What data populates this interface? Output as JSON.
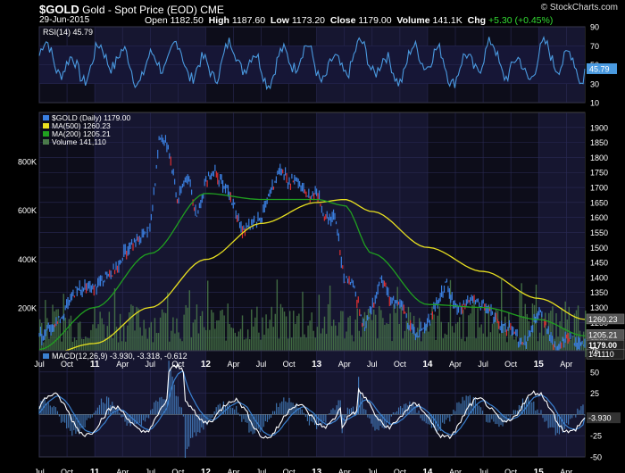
{
  "header": {
    "symbol": "$GOLD",
    "name": "Gold - Spot Price (EOD)",
    "exchange": "CME",
    "date": "29-Jun-2015",
    "open_label": "Open",
    "open": "1182.50",
    "high_label": "High",
    "high": "1187.60",
    "low_label": "Low",
    "low": "1173.20",
    "close_label": "Close",
    "close": "1179.00",
    "volume_label": "Volume",
    "volume": "141.1K",
    "chg_label": "Chg",
    "chg": "+5.30 (+0.45%)",
    "brand": "© StockCharts.com"
  },
  "colors": {
    "background": "#000000",
    "panel": "#0d0d1a",
    "grid": "#2a2a55",
    "band": "#161630",
    "price": "#3a7fe0",
    "price_down": "#e03030",
    "ma500": "#e8e020",
    "ma200": "#20a020",
    "volume": "#4a7a4a",
    "rsi": "#4a9ae0",
    "macd": "#ffffff",
    "signal": "#3a80d0",
    "hist": "#4a8ad0"
  },
  "chart_data": [
    {
      "type": "line",
      "title": "RSI(14) 45.79",
      "series": [
        {
          "name": "RSI(14)",
          "last": 45.79
        }
      ],
      "ylim": [
        10,
        90
      ],
      "y_ticks": [
        10,
        30,
        50,
        70,
        90
      ],
      "last_label": "45.79",
      "shaded_levels": [
        30,
        70
      ],
      "grid": true
    },
    {
      "type": "line",
      "legend": [
        "$GOLD (Daily) 1179.00",
        "MA(500) 1260.23",
        "MA(200) 1205.21",
        "Volume 141,110"
      ],
      "legend_placement": "top-left",
      "x_start": "2010-07",
      "x_end": "2015-06",
      "x_ticks": [
        {
          "label": "Jul",
          "t": 0
        },
        {
          "label": "Oct",
          "t": 3
        },
        {
          "label": "11",
          "t": 6
        },
        {
          "label": "Apr",
          "t": 9
        },
        {
          "label": "Jul",
          "t": 12
        },
        {
          "label": "Oct",
          "t": 15
        },
        {
          "label": "12",
          "t": 18
        },
        {
          "label": "Apr",
          "t": 21
        },
        {
          "label": "Jul",
          "t": 24
        },
        {
          "label": "Oct",
          "t": 27
        },
        {
          "label": "13",
          "t": 30
        },
        {
          "label": "Apr",
          "t": 33
        },
        {
          "label": "Jul",
          "t": 36
        },
        {
          "label": "Oct",
          "t": 39
        },
        {
          "label": "14",
          "t": 42
        },
        {
          "label": "Apr",
          "t": 45
        },
        {
          "label": "Jul",
          "t": 48
        },
        {
          "label": "Oct",
          "t": 51
        },
        {
          "label": "15",
          "t": 54
        },
        {
          "label": "Apr",
          "t": 57
        }
      ],
      "y_ticks": [
        1150,
        1200,
        1250,
        1300,
        1350,
        1400,
        1450,
        1500,
        1550,
        1600,
        1650,
        1700,
        1750,
        1800,
        1850,
        1900
      ],
      "ylim": [
        1135,
        1950
      ],
      "series": [
        {
          "name": "$GOLD (Daily)",
          "x": [
            "2010-07",
            "2010-09",
            "2010-11",
            "2011-01",
            "2011-03",
            "2011-04",
            "2011-05",
            "2011-07",
            "2011-08",
            "2011-09",
            "2011-10",
            "2011-11",
            "2011-12",
            "2012-01",
            "2012-02",
            "2012-04",
            "2012-05",
            "2012-07",
            "2012-09",
            "2012-10",
            "2012-11",
            "2012-12",
            "2013-01",
            "2013-02",
            "2013-03",
            "2013-04",
            "2013-05",
            "2013-06",
            "2013-07",
            "2013-08",
            "2013-09",
            "2013-10",
            "2013-11",
            "2013-12",
            "2014-01",
            "2014-03",
            "2014-04",
            "2014-06",
            "2014-07",
            "2014-08",
            "2014-09",
            "2014-10",
            "2014-11",
            "2014-12",
            "2015-01",
            "2015-02",
            "2015-03",
            "2015-04",
            "2015-05",
            "2015-06"
          ],
          "values": [
            1200,
            1250,
            1360,
            1370,
            1420,
            1470,
            1520,
            1560,
            1870,
            1830,
            1650,
            1750,
            1600,
            1720,
            1760,
            1650,
            1560,
            1600,
            1760,
            1720,
            1720,
            1670,
            1680,
            1600,
            1600,
            1400,
            1380,
            1230,
            1300,
            1400,
            1320,
            1320,
            1250,
            1210,
            1250,
            1380,
            1300,
            1320,
            1310,
            1280,
            1230,
            1230,
            1180,
            1200,
            1290,
            1220,
            1160,
            1200,
            1190,
            1179
          ]
        },
        {
          "name": "MA(500)",
          "x": [
            "2010-07",
            "2011-01",
            "2011-07",
            "2012-01",
            "2012-07",
            "2013-01",
            "2013-04",
            "2013-07",
            "2014-01",
            "2014-07",
            "2015-01",
            "2015-06"
          ],
          "values": [
            1135,
            1180,
            1300,
            1460,
            1580,
            1650,
            1660,
            1620,
            1500,
            1420,
            1330,
            1260.23
          ]
        },
        {
          "name": "MA(200)",
          "x": [
            "2010-07",
            "2011-01",
            "2011-07",
            "2012-01",
            "2012-07",
            "2013-01",
            "2013-04",
            "2013-07",
            "2014-01",
            "2014-07",
            "2015-01",
            "2015-06"
          ],
          "values": [
            1160,
            1300,
            1480,
            1680,
            1660,
            1660,
            1640,
            1480,
            1310,
            1300,
            1260,
            1205.21
          ]
        }
      ],
      "price_labels": [
        "1260.23",
        "1205.21",
        "1179.00",
        "141110"
      ],
      "volume": {
        "name": "Volume",
        "last": 141110,
        "y_ticks": [
          "200K",
          "400K",
          "600K",
          "800K"
        ],
        "ylim": [
          0,
          1000000
        ]
      },
      "grid": true
    },
    {
      "type": "line",
      "title": "MACD(12,26,9) -3.930, -3.318, -0.612",
      "series": [
        {
          "name": "MACD",
          "last": -3.93
        },
        {
          "name": "Signal",
          "last": -3.318
        },
        {
          "name": "Histogram",
          "last": -0.612
        }
      ],
      "ylim": [
        -50,
        75
      ],
      "y_ticks": [
        -50,
        -25,
        25,
        50,
        75
      ],
      "last_label": "-3.930",
      "grid": true
    }
  ]
}
